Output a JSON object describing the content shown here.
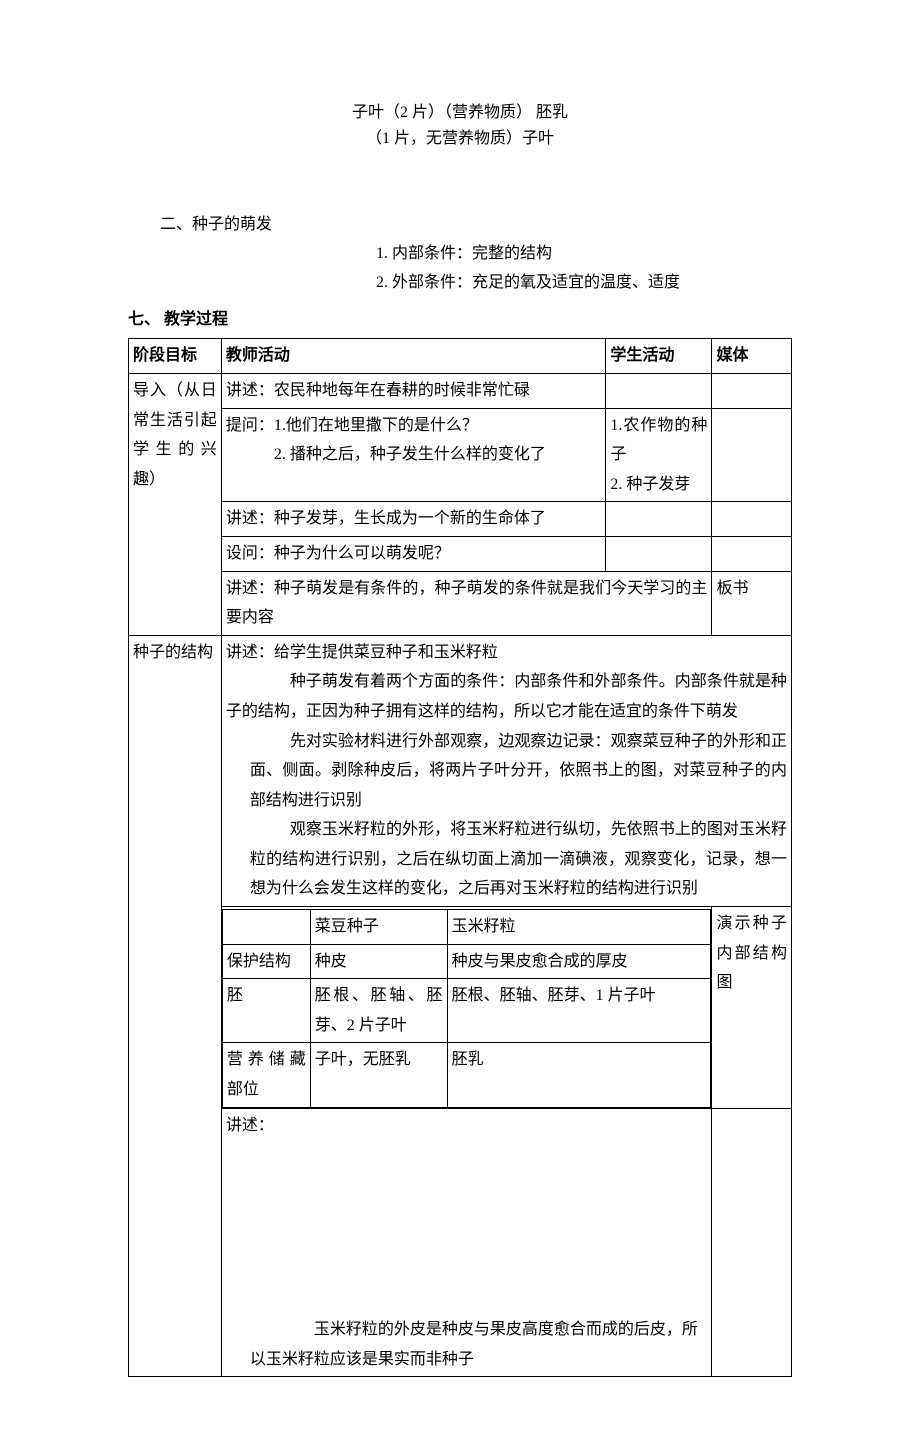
{
  "top": {
    "line1": "子叶（2 片）（营养物质）   胚乳",
    "line2": "（1 片，无营养物质）子叶"
  },
  "section2": {
    "title": "二、种子的萌发",
    "item1_num": "1.",
    "item1_text": "内部条件：完整的结构",
    "item2_num": "2.",
    "item2_text": "外部条件：充足的氧及适宜的温度、适度"
  },
  "heading7": "七、     教学过程",
  "headers": {
    "stage": "阶段目标",
    "teacher": "教师活动",
    "student": "学生活动",
    "media": "媒体"
  },
  "intro": {
    "stage": "导入（从日常生活引起学生的兴趣）",
    "r1_teacher": "讲述：农民种地每年在春耕的时候非常忙碌",
    "r1_student": "",
    "r1_media": "",
    "r2_teacher": "提问：1.他们在地里撒下的是什么？",
    "r2_teacher_b": "            2. 播种之后，种子发生什么样的变化了",
    "r2_student": "1.农作物的种子",
    "r2_student_b": "2. 种子发芽",
    "r2_media": "",
    "r3_teacher": "讲述：种子发芽，生长成为一个新的生命体了",
    "r3_student": "",
    "r3_media": "",
    "r4_teacher": "设问：种子为什么可以萌发呢？",
    "r4_student": "",
    "r4_media": "",
    "r5_teacher": "讲述：种子萌发是有条件的，种子萌发的条件就是我们今天学习的主要内容",
    "r5_media": "板书"
  },
  "seed": {
    "stage": "种子的结构",
    "intro": "讲述：给学生提供菜豆种子和玉米籽粒",
    "p1": "种子萌发有着两个方面的条件：内部条件和外部条件。内部条件就是种子的结构，正因为种子拥有这样的结构，所以它才能在适宜的条件下萌发",
    "p2": "先对实验材料进行外部观察，边观察边记录：观察菜豆种子的外形和正面、侧面。剥除种皮后，将两片子叶分开，依照书上的图，对菜豆种子的内部结构进行识别",
    "p3": "观察玉米籽粒的外形，将玉米籽粒进行纵切，先依照书上的图对玉米籽粒的结构进行识别，之后在纵切面上滴加一滴碘液，观察变化，记录，想一想为什么会发生这样的变化，之后再对玉米籽粒的结构进行识别",
    "inner": {
      "h1": "",
      "h2": "菜豆种子",
      "h3": "玉米籽粒",
      "r1c1": "保护结构",
      "r1c2": "种皮",
      "r1c3": "种皮与果皮愈合成的厚皮",
      "r2c1": "胚",
      "r2c2": "胚根、胚轴、胚芽、2 片子叶",
      "r2c3": "胚根、胚轴、胚芽、1 片子叶",
      "r3c1": "营养储藏部位",
      "r3c2": "子叶，无胚乳",
      "r3c3": "胚乳"
    },
    "after_table": "讲述：",
    "final1": "玉米籽粒的外皮是种皮与果皮高度愈合而成的后皮，所",
    "final2": "以玉米籽粒应该是果实而非种子",
    "media": "演示种子内部结构图"
  }
}
